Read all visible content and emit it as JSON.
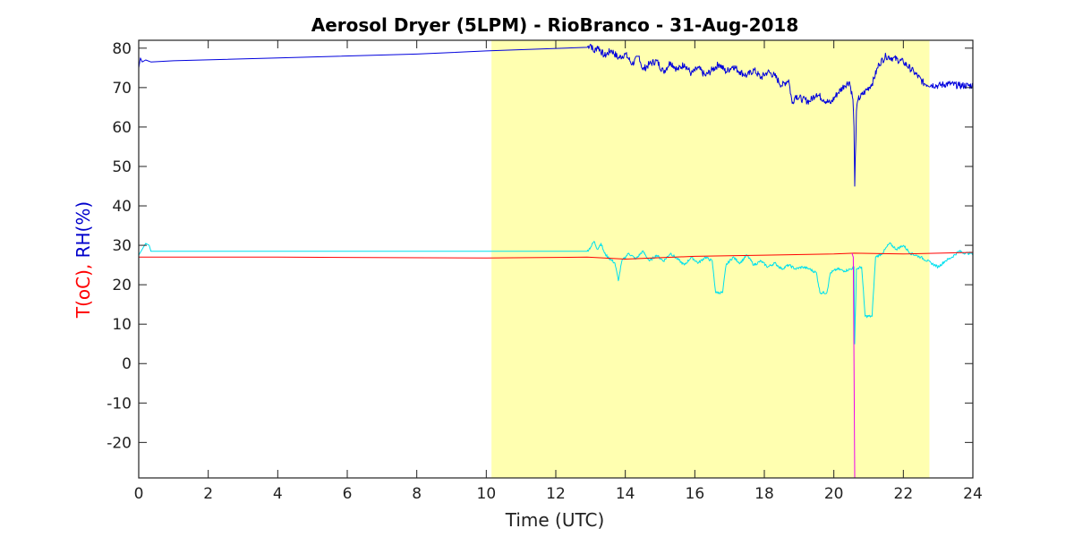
{
  "chart_data": {
    "type": "line",
    "title": "Aerosol Dryer (5LPM) - RioBranco - 31-Aug-2018",
    "xlabel": "Time (UTC)",
    "ylabel_parts": [
      {
        "text": "T(oC),",
        "color": "#ff0000"
      },
      {
        "text": " RH(%)",
        "color": "#0000cc"
      }
    ],
    "xlim": [
      0,
      24
    ],
    "ylim": [
      -29,
      82
    ],
    "xticks": [
      0,
      2,
      4,
      6,
      8,
      10,
      12,
      14,
      16,
      18,
      20,
      22,
      24
    ],
    "yticks": [
      -20,
      -10,
      0,
      10,
      20,
      30,
      40,
      50,
      60,
      70,
      80
    ],
    "shaded_region": {
      "x": [
        10.15,
        22.75
      ],
      "color": "#ffffb0"
    },
    "series": [
      {
        "color": "#0000dd",
        "points": [
          [
            0,
            75
          ],
          [
            0.05,
            77.5
          ],
          [
            0.1,
            76.5
          ],
          [
            0.2,
            77
          ],
          [
            0.35,
            76.5
          ],
          [
            1,
            76.8
          ],
          [
            4,
            77.5
          ],
          [
            8,
            78.5
          ],
          [
            10,
            79.3
          ],
          [
            12.9,
            80.2
          ],
          [
            13,
            81
          ],
          [
            13.1,
            79
          ],
          [
            13.2,
            80.5
          ],
          [
            13.4,
            78
          ],
          [
            13.6,
            79.5
          ],
          [
            13.8,
            77.5
          ],
          [
            14,
            78.5
          ],
          [
            14.2,
            76
          ],
          [
            14.4,
            78
          ],
          [
            14.5,
            74.5
          ],
          [
            14.7,
            76
          ],
          [
            14.9,
            76.8
          ],
          [
            15.1,
            74
          ],
          [
            15.3,
            76.5
          ],
          [
            15.5,
            74.5
          ],
          [
            15.7,
            76
          ],
          [
            15.9,
            73.5
          ],
          [
            16.1,
            75
          ],
          [
            16.3,
            73
          ],
          [
            16.5,
            74.5
          ],
          [
            16.7,
            76
          ],
          [
            16.9,
            74
          ],
          [
            17.1,
            75.5
          ],
          [
            17.3,
            74
          ],
          [
            17.5,
            73
          ],
          [
            17.7,
            74.5
          ],
          [
            17.9,
            72.5
          ],
          [
            18.1,
            74
          ],
          [
            18.3,
            73
          ],
          [
            18.5,
            70.5
          ],
          [
            18.7,
            72
          ],
          [
            18.8,
            66
          ],
          [
            18.9,
            68
          ],
          [
            19.1,
            67
          ],
          [
            19.3,
            66.5
          ],
          [
            19.5,
            68.5
          ],
          [
            19.7,
            67
          ],
          [
            19.9,
            66
          ],
          [
            20.1,
            68.5
          ],
          [
            20.3,
            70.5
          ],
          [
            20.45,
            71.5
          ],
          [
            20.55,
            67
          ],
          [
            20.58,
            60
          ],
          [
            20.6,
            45
          ],
          [
            20.65,
            64
          ],
          [
            20.7,
            67
          ],
          [
            20.9,
            69
          ],
          [
            21.1,
            71
          ],
          [
            21.3,
            76
          ],
          [
            21.5,
            78
          ],
          [
            21.7,
            77.5
          ],
          [
            22,
            76.5
          ],
          [
            22.3,
            74
          ],
          [
            22.6,
            71
          ],
          [
            23,
            70.5
          ],
          [
            23.3,
            71
          ],
          [
            23.6,
            70.5
          ],
          [
            24,
            70.5
          ]
        ]
      },
      {
        "color": "#00e0ee",
        "points": [
          [
            0,
            27.5
          ],
          [
            0.1,
            29
          ],
          [
            0.2,
            30.5
          ],
          [
            0.3,
            30
          ],
          [
            0.35,
            28.5
          ],
          [
            12.9,
            28.5
          ],
          [
            13,
            29.5
          ],
          [
            13.1,
            31
          ],
          [
            13.2,
            29
          ],
          [
            13.3,
            30.5
          ],
          [
            13.4,
            28
          ],
          [
            13.5,
            27
          ],
          [
            13.7,
            25.5
          ],
          [
            13.8,
            21
          ],
          [
            13.9,
            26
          ],
          [
            14.1,
            28
          ],
          [
            14.3,
            26.5
          ],
          [
            14.5,
            28.5
          ],
          [
            14.7,
            26
          ],
          [
            14.9,
            27.5
          ],
          [
            15.1,
            26
          ],
          [
            15.3,
            28
          ],
          [
            15.5,
            26.5
          ],
          [
            15.7,
            25
          ],
          [
            15.9,
            27
          ],
          [
            16.1,
            25.5
          ],
          [
            16.3,
            27
          ],
          [
            16.5,
            26
          ],
          [
            16.6,
            18
          ],
          [
            16.8,
            18
          ],
          [
            16.9,
            25
          ],
          [
            17.1,
            27
          ],
          [
            17.3,
            25.5
          ],
          [
            17.5,
            27.5
          ],
          [
            17.7,
            25
          ],
          [
            17.9,
            26
          ],
          [
            18.1,
            24.5
          ],
          [
            18.3,
            25.5
          ],
          [
            18.5,
            24
          ],
          [
            18.7,
            25
          ],
          [
            18.9,
            24
          ],
          [
            19.1,
            24.5
          ],
          [
            19.3,
            24
          ],
          [
            19.5,
            23
          ],
          [
            19.6,
            18
          ],
          [
            19.8,
            18
          ],
          [
            19.9,
            23
          ],
          [
            20.1,
            24
          ],
          [
            20.3,
            23.5
          ],
          [
            20.5,
            24
          ],
          [
            20.58,
            24.5
          ],
          [
            20.6,
            5
          ],
          [
            20.65,
            24
          ],
          [
            20.8,
            24.5
          ],
          [
            20.9,
            12
          ],
          [
            21.1,
            12
          ],
          [
            21.2,
            27
          ],
          [
            21.4,
            28
          ],
          [
            21.6,
            30.5
          ],
          [
            21.8,
            29
          ],
          [
            22,
            30
          ],
          [
            22.2,
            28
          ],
          [
            22.5,
            27
          ],
          [
            22.8,
            25.5
          ],
          [
            23,
            24.5
          ],
          [
            23.2,
            26
          ],
          [
            23.4,
            27
          ],
          [
            23.6,
            28.5
          ],
          [
            23.8,
            28
          ],
          [
            24,
            28
          ]
        ]
      },
      {
        "color": "#ff0000",
        "points": [
          [
            0,
            27
          ],
          [
            4,
            27
          ],
          [
            10,
            26.8
          ],
          [
            12.9,
            27
          ],
          [
            14,
            26.5
          ],
          [
            16,
            27.2
          ],
          [
            18,
            27.5
          ],
          [
            20,
            27.8
          ],
          [
            20.58,
            28
          ],
          [
            22,
            27.8
          ],
          [
            24,
            28.2
          ]
        ]
      },
      {
        "color": "#ee00ee",
        "points": [
          [
            20.52,
            28
          ],
          [
            20.56,
            27
          ],
          [
            20.58,
            0
          ],
          [
            20.6,
            -29
          ]
        ]
      }
    ]
  }
}
